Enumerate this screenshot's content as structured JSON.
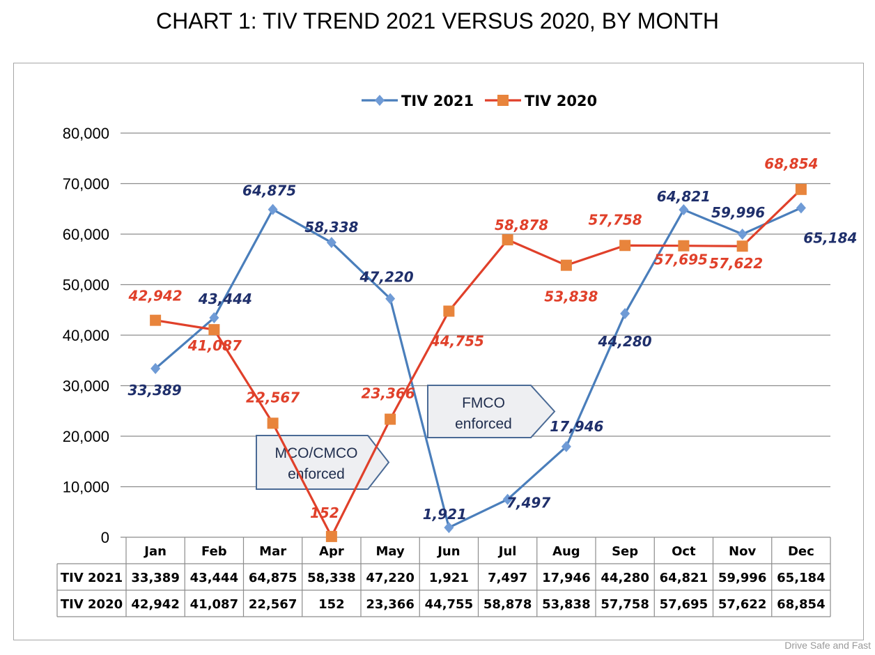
{
  "page_title": "CHART 1: TIV TREND 2021 VERSUS 2020, BY MONTH",
  "watermark": "Drive Safe and Fast",
  "chart_data": {
    "type": "line",
    "title": "CHART 1: TIV TREND 2021 VERSUS 2020, BY MONTH",
    "xlabel": "",
    "ylabel": "",
    "ylim": [
      0,
      80000
    ],
    "yticks": [
      0,
      10000,
      20000,
      30000,
      40000,
      50000,
      60000,
      70000,
      80000
    ],
    "ytick_labels": [
      "0",
      "10,000",
      "20,000",
      "30,000",
      "40,000",
      "50,000",
      "60,000",
      "70,000",
      "80,000"
    ],
    "grid": true,
    "legend_position": "top-center",
    "categories": [
      "Jan",
      "Feb",
      "Mar",
      "Apr",
      "May",
      "Jun",
      "Jul",
      "Aug",
      "Sep",
      "Oct",
      "Nov",
      "Dec"
    ],
    "series": [
      {
        "name": "TIV 2021",
        "marker": "diamond",
        "color": "#4a7ebb",
        "marker_color": "#6f9bd6",
        "label_color": "#1f2f6b",
        "values": [
          33389,
          43444,
          64875,
          58338,
          47220,
          1921,
          7497,
          17946,
          44280,
          64821,
          59996,
          65184
        ],
        "labels": [
          "33,389",
          "43,444",
          "64,875",
          "58,338",
          "47,220",
          "1,921",
          "7,497",
          "17,946",
          "44,280",
          "64,821",
          "59,996",
          "65,184"
        ]
      },
      {
        "name": "TIV 2020",
        "marker": "square",
        "color": "#e0402a",
        "marker_color": "#e8843c",
        "label_color": "#e0402a",
        "values": [
          42942,
          41087,
          22567,
          152,
          23366,
          44755,
          58878,
          53838,
          57758,
          57695,
          57622,
          68854
        ],
        "labels": [
          "42,942",
          "41,087",
          "22,567",
          "152",
          "23,366",
          "44,755",
          "58,878",
          "53,838",
          "57,758",
          "57,695",
          "57,622",
          "68,854"
        ]
      }
    ],
    "annotations": [
      {
        "text_lines": [
          "MCO/CMCO",
          "enforced"
        ],
        "shape": "pentagon-arrow",
        "near": "Mar-Apr"
      },
      {
        "text_lines": [
          "FMCO",
          "enforced"
        ],
        "shape": "pentagon-arrow",
        "near": "Jun-Jul"
      }
    ],
    "data_table": {
      "row_headers": [
        "TIV 2021",
        "TIV 2020"
      ],
      "rows": [
        [
          "33,389",
          "43,444",
          "64,875",
          "58,338",
          "47,220",
          "1,921",
          "7,497",
          "17,946",
          "44,280",
          "64,821",
          "59,996",
          "65,184"
        ],
        [
          "42,942",
          "41,087",
          "22,567",
          "152",
          "23,366",
          "44,755",
          "58,878",
          "53,838",
          "57,758",
          "57,695",
          "57,622",
          "68,854"
        ]
      ]
    }
  }
}
